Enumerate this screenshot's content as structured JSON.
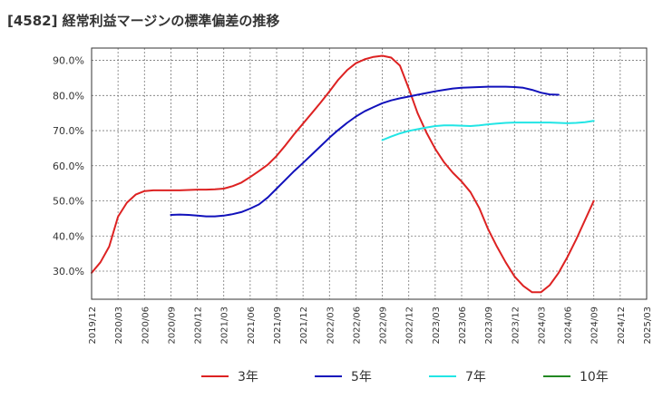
{
  "title": "[4582]  経常利益マージンの標準偏差の推移",
  "chart_data": {
    "type": "line",
    "title": "[4582]  経常利益マージンの標準偏差の推移",
    "xlabel": "",
    "ylabel": "",
    "ylim": [
      22.0,
      93.5
    ],
    "y_ticks": [
      "30.0%",
      "40.0%",
      "50.0%",
      "60.0%",
      "70.0%",
      "80.0%",
      "90.0%"
    ],
    "x_ticks": [
      "2019/12",
      "2020/03",
      "2020/06",
      "2020/09",
      "2020/12",
      "2021/03",
      "2021/06",
      "2021/09",
      "2021/12",
      "2022/03",
      "2022/06",
      "2022/09",
      "2022/12",
      "2023/03",
      "2023/06",
      "2023/09",
      "2023/12",
      "2024/03",
      "2024/06",
      "2024/09",
      "2024/12",
      "2025/03"
    ],
    "grid": true,
    "legend_position": "bottom",
    "series": [
      {
        "name": "3年",
        "color": "#dd2222",
        "points": [
          [
            "2019/12",
            29.5
          ],
          [
            "2020/01",
            32.5
          ],
          [
            "2020/02",
            37.0
          ],
          [
            "2020/03",
            45.5
          ],
          [
            "2020/04",
            49.5
          ],
          [
            "2020/05",
            51.8
          ],
          [
            "2020/06",
            52.8
          ],
          [
            "2020/07",
            53.0
          ],
          [
            "2020/08",
            53.0
          ],
          [
            "2020/09",
            53.0
          ],
          [
            "2020/10",
            53.0
          ],
          [
            "2020/11",
            53.1
          ],
          [
            "2020/12",
            53.2
          ],
          [
            "2021/01",
            53.2
          ],
          [
            "2021/02",
            53.3
          ],
          [
            "2021/03",
            53.5
          ],
          [
            "2021/04",
            54.2
          ],
          [
            "2021/05",
            55.2
          ],
          [
            "2021/06",
            56.8
          ],
          [
            "2021/07",
            58.5
          ],
          [
            "2021/08",
            60.3
          ],
          [
            "2021/09",
            62.8
          ],
          [
            "2021/10",
            65.8
          ],
          [
            "2021/11",
            69.0
          ],
          [
            "2021/12",
            72.0
          ],
          [
            "2022/01",
            75.0
          ],
          [
            "2022/02",
            78.0
          ],
          [
            "2022/03",
            81.2
          ],
          [
            "2022/04",
            84.5
          ],
          [
            "2022/05",
            87.2
          ],
          [
            "2022/06",
            89.2
          ],
          [
            "2022/07",
            90.3
          ],
          [
            "2022/08",
            91.0
          ],
          [
            "2022/09",
            91.3
          ],
          [
            "2022/10",
            90.8
          ],
          [
            "2022/11",
            88.5
          ],
          [
            "2022/12",
            82.0
          ],
          [
            "2023/01",
            75.0
          ],
          [
            "2023/02",
            69.5
          ],
          [
            "2023/03",
            64.8
          ],
          [
            "2023/04",
            61.0
          ],
          [
            "2023/05",
            58.0
          ],
          [
            "2023/06",
            55.5
          ],
          [
            "2023/07",
            52.5
          ],
          [
            "2023/08",
            48.0
          ],
          [
            "2023/09",
            42.0
          ],
          [
            "2023/10",
            37.0
          ],
          [
            "2023/11",
            32.5
          ],
          [
            "2023/12",
            28.5
          ],
          [
            "2024/01",
            25.8
          ],
          [
            "2024/02",
            24.0
          ],
          [
            "2024/03",
            24.0
          ],
          [
            "2024/04",
            26.0
          ],
          [
            "2024/05",
            29.5
          ],
          [
            "2024/06",
            34.0
          ],
          [
            "2024/07",
            39.0
          ],
          [
            "2024/08",
            44.5
          ],
          [
            "2024/09",
            50.0
          ]
        ]
      },
      {
        "name": "5年",
        "color": "#1111bb",
        "points": [
          [
            "2020/09",
            46.0
          ],
          [
            "2020/10",
            46.1
          ],
          [
            "2020/11",
            46.0
          ],
          [
            "2020/12",
            45.8
          ],
          [
            "2021/01",
            45.6
          ],
          [
            "2021/02",
            45.6
          ],
          [
            "2021/03",
            45.8
          ],
          [
            "2021/04",
            46.2
          ],
          [
            "2021/05",
            46.8
          ],
          [
            "2021/06",
            47.8
          ],
          [
            "2021/07",
            49.0
          ],
          [
            "2021/08",
            51.0
          ],
          [
            "2021/09",
            53.5
          ],
          [
            "2021/10",
            56.0
          ],
          [
            "2021/11",
            58.5
          ],
          [
            "2021/12",
            60.8
          ],
          [
            "2022/01",
            63.2
          ],
          [
            "2022/02",
            65.6
          ],
          [
            "2022/03",
            68.0
          ],
          [
            "2022/04",
            70.2
          ],
          [
            "2022/05",
            72.2
          ],
          [
            "2022/06",
            74.0
          ],
          [
            "2022/07",
            75.5
          ],
          [
            "2022/08",
            76.7
          ],
          [
            "2022/09",
            77.8
          ],
          [
            "2022/10",
            78.6
          ],
          [
            "2022/11",
            79.2
          ],
          [
            "2022/12",
            79.7
          ],
          [
            "2023/01",
            80.2
          ],
          [
            "2023/02",
            80.7
          ],
          [
            "2023/03",
            81.2
          ],
          [
            "2023/04",
            81.6
          ],
          [
            "2023/05",
            82.0
          ],
          [
            "2023/06",
            82.2
          ],
          [
            "2023/07",
            82.3
          ],
          [
            "2023/08",
            82.4
          ],
          [
            "2023/09",
            82.5
          ],
          [
            "2023/10",
            82.5
          ],
          [
            "2023/11",
            82.5
          ],
          [
            "2023/12",
            82.4
          ],
          [
            "2024/01",
            82.2
          ],
          [
            "2024/02",
            81.6
          ],
          [
            "2024/03",
            80.8
          ],
          [
            "2024/04",
            80.3
          ],
          [
            "2024/05",
            80.2
          ]
        ]
      },
      {
        "name": "7年",
        "color": "#22e5e5",
        "points": [
          [
            "2022/09",
            67.3
          ],
          [
            "2022/10",
            68.3
          ],
          [
            "2022/11",
            69.2
          ],
          [
            "2022/12",
            69.9
          ],
          [
            "2023/01",
            70.4
          ],
          [
            "2023/02",
            70.9
          ],
          [
            "2023/03",
            71.3
          ],
          [
            "2023/04",
            71.5
          ],
          [
            "2023/05",
            71.5
          ],
          [
            "2023/06",
            71.4
          ],
          [
            "2023/07",
            71.3
          ],
          [
            "2023/08",
            71.5
          ],
          [
            "2023/09",
            71.8
          ],
          [
            "2023/10",
            72.0
          ],
          [
            "2023/11",
            72.2
          ],
          [
            "2023/12",
            72.3
          ],
          [
            "2024/01",
            72.3
          ],
          [
            "2024/02",
            72.3
          ],
          [
            "2024/03",
            72.3
          ],
          [
            "2024/04",
            72.3
          ],
          [
            "2024/05",
            72.2
          ],
          [
            "2024/06",
            72.1
          ],
          [
            "2024/07",
            72.2
          ],
          [
            "2024/08",
            72.4
          ],
          [
            "2024/09",
            72.8
          ]
        ]
      },
      {
        "name": "10年",
        "color": "#228822",
        "points": []
      }
    ]
  }
}
